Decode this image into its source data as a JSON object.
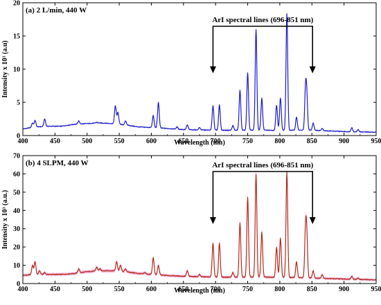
{
  "chart_data": [
    {
      "type": "line",
      "title": "(a) 2 L/min, 440 W",
      "xlabel": "Wavelength (nm)",
      "ylabel": "Intensity x 10³ (a.u)",
      "xlim": [
        400,
        950
      ],
      "ylim": [
        0,
        20
      ],
      "xticks": [
        400,
        450,
        500,
        550,
        600,
        650,
        700,
        750,
        800,
        850,
        900,
        950
      ],
      "yticks": [
        0,
        5,
        10,
        15,
        20
      ],
      "grid": false,
      "color": "#1a1acc",
      "fill": false,
      "annotation": {
        "text": "ArI spectral lines (696-851 nm)",
        "x_start": 696,
        "x_end": 851
      },
      "baseline": [
        [
          400,
          1.0
        ],
        [
          420,
          1.3
        ],
        [
          440,
          1.4
        ],
        [
          460,
          1.4
        ],
        [
          480,
          1.7
        ],
        [
          500,
          1.8
        ],
        [
          520,
          1.9
        ],
        [
          540,
          1.8
        ],
        [
          560,
          1.6
        ],
        [
          580,
          1.3
        ],
        [
          600,
          1.2
        ],
        [
          620,
          1.1
        ],
        [
          650,
          0.9
        ],
        [
          700,
          0.8
        ],
        [
          750,
          0.8
        ],
        [
          800,
          0.8
        ],
        [
          850,
          0.8
        ],
        [
          900,
          0.6
        ],
        [
          950,
          0.5
        ]
      ],
      "peaks": [
        {
          "x": 415,
          "y": 1.9
        },
        {
          "x": 419,
          "y": 2.3
        },
        {
          "x": 434,
          "y": 2.5
        },
        {
          "x": 487,
          "y": 2.2
        },
        {
          "x": 515,
          "y": 2.0
        },
        {
          "x": 544,
          "y": 4.5
        },
        {
          "x": 548,
          "y": 3.5
        },
        {
          "x": 560,
          "y": 2.2
        },
        {
          "x": 603,
          "y": 3.0
        },
        {
          "x": 611,
          "y": 5.0
        },
        {
          "x": 640,
          "y": 1.3
        },
        {
          "x": 656,
          "y": 1.6
        },
        {
          "x": 675,
          "y": 1.2
        },
        {
          "x": 696,
          "y": 4.5
        },
        {
          "x": 706,
          "y": 4.6
        },
        {
          "x": 727,
          "y": 1.5
        },
        {
          "x": 738,
          "y": 6.8
        },
        {
          "x": 750,
          "y": 9.4
        },
        {
          "x": 763,
          "y": 16.0
        },
        {
          "x": 772,
          "y": 5.6
        },
        {
          "x": 795,
          "y": 4.6
        },
        {
          "x": 801,
          "y": 5.7
        },
        {
          "x": 811,
          "y": 18.4
        },
        {
          "x": 826,
          "y": 2.8
        },
        {
          "x": 840,
          "y": 6.6
        },
        {
          "x": 842,
          "y": 5.5
        },
        {
          "x": 852,
          "y": 1.9
        },
        {
          "x": 866,
          "y": 1.1
        },
        {
          "x": 912,
          "y": 1.2
        },
        {
          "x": 922,
          "y": 0.9
        }
      ]
    },
    {
      "type": "line",
      "title": "(b) 4 SLPM, 440 W",
      "xlabel": "Wavelength (nm)",
      "ylabel": "Intensity x 10³ (a.u.)",
      "xlim": [
        400,
        950
      ],
      "ylim": [
        0,
        70
      ],
      "xticks": [
        400,
        450,
        500,
        550,
        600,
        650,
        700,
        750,
        800,
        850,
        900,
        950
      ],
      "yticks": [
        0,
        10,
        20,
        30,
        40,
        50,
        60,
        70
      ],
      "grid": false,
      "color": "#b5281a",
      "fill": true,
      "fill_color": "#f0a8d8",
      "annotation": {
        "text": "ArI spectral lines (696-851 nm)",
        "x_start": 696,
        "x_end": 851
      },
      "baseline": [
        [
          400,
          4.5
        ],
        [
          420,
          5
        ],
        [
          440,
          5
        ],
        [
          460,
          5
        ],
        [
          480,
          5.5
        ],
        [
          500,
          6.5
        ],
        [
          520,
          7
        ],
        [
          540,
          7
        ],
        [
          560,
          6.5
        ],
        [
          580,
          5.5
        ],
        [
          600,
          5
        ],
        [
          620,
          4.5
        ],
        [
          650,
          4
        ],
        [
          700,
          3.5
        ],
        [
          750,
          3.5
        ],
        [
          800,
          3.5
        ],
        [
          850,
          3
        ],
        [
          900,
          2.5
        ],
        [
          950,
          2
        ]
      ],
      "peaks": [
        {
          "x": 415,
          "y": 10
        },
        {
          "x": 419,
          "y": 12
        },
        {
          "x": 426,
          "y": 7
        },
        {
          "x": 434,
          "y": 6
        },
        {
          "x": 487,
          "y": 8
        },
        {
          "x": 515,
          "y": 9
        },
        {
          "x": 520,
          "y": 8
        },
        {
          "x": 546,
          "y": 12
        },
        {
          "x": 552,
          "y": 10
        },
        {
          "x": 560,
          "y": 8
        },
        {
          "x": 590,
          "y": 6
        },
        {
          "x": 603,
          "y": 14
        },
        {
          "x": 611,
          "y": 10
        },
        {
          "x": 656,
          "y": 7
        },
        {
          "x": 675,
          "y": 5
        },
        {
          "x": 696,
          "y": 22
        },
        {
          "x": 706,
          "y": 22
        },
        {
          "x": 727,
          "y": 6
        },
        {
          "x": 738,
          "y": 33
        },
        {
          "x": 750,
          "y": 47
        },
        {
          "x": 763,
          "y": 60
        },
        {
          "x": 772,
          "y": 28
        },
        {
          "x": 795,
          "y": 20
        },
        {
          "x": 801,
          "y": 25
        },
        {
          "x": 811,
          "y": 61
        },
        {
          "x": 826,
          "y": 12
        },
        {
          "x": 840,
          "y": 28
        },
        {
          "x": 842,
          "y": 24
        },
        {
          "x": 852,
          "y": 7
        },
        {
          "x": 866,
          "y": 5
        },
        {
          "x": 912,
          "y": 4
        },
        {
          "x": 922,
          "y": 3
        }
      ]
    }
  ]
}
